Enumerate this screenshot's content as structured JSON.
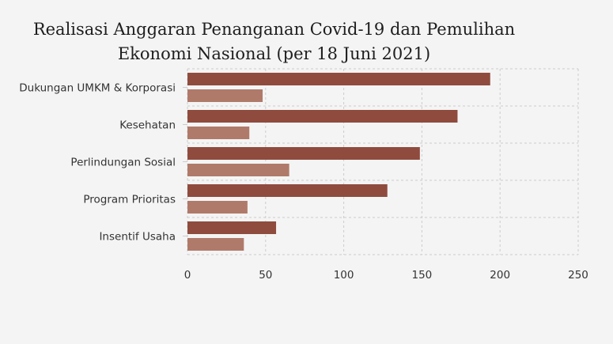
{
  "title_line1": "Realisasi Anggaran Penanganan Covid-19 dan Pemulihan",
  "title_line2": "Ekonomi Nasional (per 18 Juni 2021)",
  "colors": {
    "series_dark": "#8f4b3e",
    "series_light": "#b07a6a",
    "grid": "#cccccc",
    "background": "#f4f4f4"
  },
  "chart_data": {
    "type": "bar",
    "orientation": "horizontal",
    "categories": [
      "Dukungan UMKM & Korporasi",
      "Kesehatan",
      "Perlindungan Sosial",
      "Program Prioritas",
      "Insentif Usaha"
    ],
    "series": [
      {
        "values": [
          193.7,
          172.8,
          148.7,
          127.9,
          56.7
        ]
      },
      {
        "values": [
          48.1,
          39.6,
          65.1,
          38.4,
          36.1
        ]
      }
    ],
    "xlim": [
      0,
      250
    ],
    "xticks": [
      0,
      50,
      100,
      150,
      200,
      250
    ],
    "grid": true
  }
}
